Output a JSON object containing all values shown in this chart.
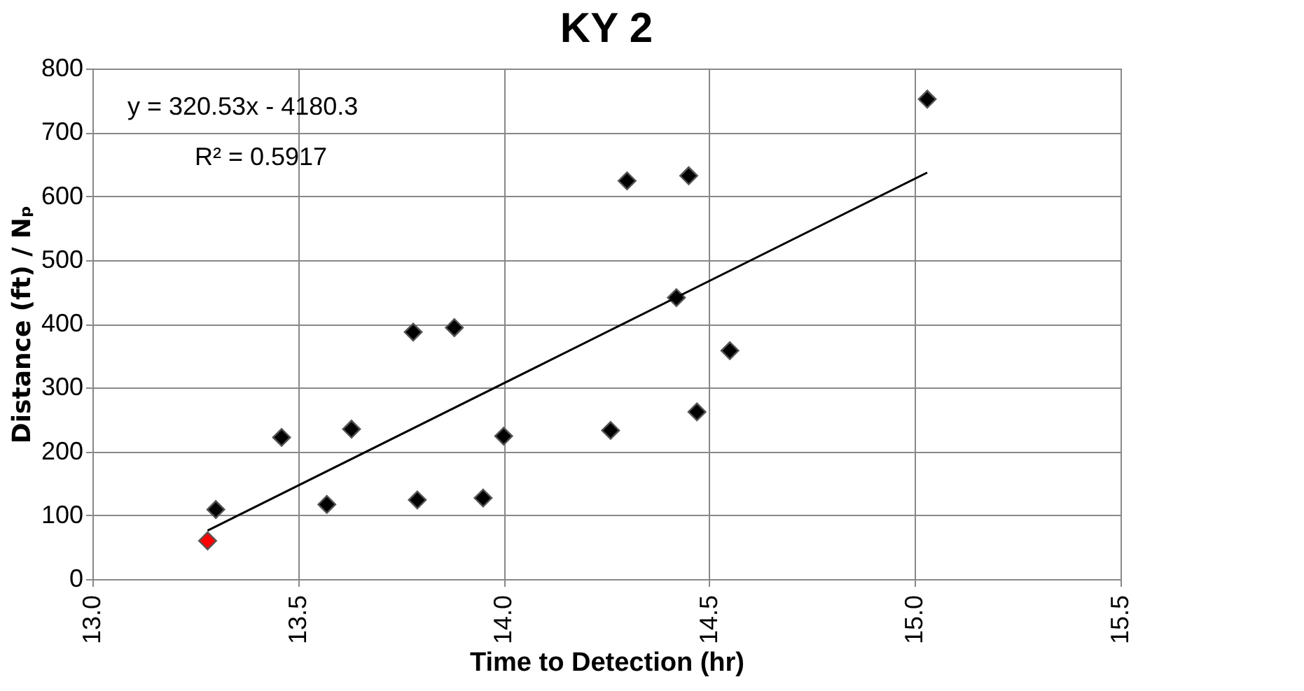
{
  "chart_data": {
    "type": "scatter",
    "title": "KY 2",
    "xlabel": "Time to Detection (hr)",
    "ylabel": "Distance (ft) / Nₚ",
    "xlim": [
      13.0,
      15.5
    ],
    "xticks": [
      {
        "value": 13.0,
        "label": "13.0"
      },
      {
        "value": 13.5,
        "label": "13.5"
      },
      {
        "value": 14.0,
        "label": "14.0"
      },
      {
        "value": 14.5,
        "label": "14.5"
      },
      {
        "value": 15.0,
        "label": "15.0"
      },
      {
        "value": 15.5,
        "label": "15.5"
      }
    ],
    "ylim": [
      0,
      800
    ],
    "yticks": [
      0,
      100,
      200,
      300,
      400,
      500,
      600,
      700,
      800
    ],
    "grid": true,
    "marker": "diamond",
    "series": [
      {
        "color": "#000000",
        "x": [
          13.3,
          13.46,
          13.57,
          13.63,
          13.78,
          13.79,
          13.88,
          13.95,
          14.0,
          14.26,
          14.3,
          14.42,
          14.45,
          14.47,
          14.55,
          15.03
        ],
        "values": [
          109,
          222,
          117,
          235,
          387,
          124,
          394,
          127,
          224,
          233,
          624,
          441,
          632,
          262,
          358,
          752
        ]
      },
      {
        "color": "#ff0000",
        "x": [
          13.28
        ],
        "values": [
          60
        ]
      },
      {
        "type": "line",
        "color": "#000000",
        "marker": "none",
        "x": [
          13.28,
          15.03
        ],
        "values": [
          76,
          637
        ]
      }
    ],
    "annotations": [
      "y = 320.53x - 4180.3",
      "R² = 0.5917"
    ]
  }
}
